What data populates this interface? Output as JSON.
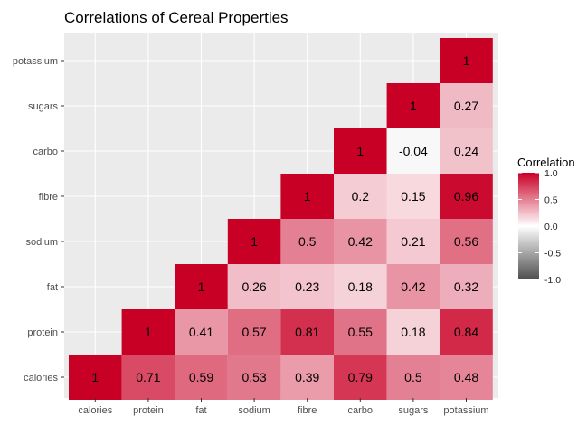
{
  "chart_data": {
    "type": "heatmap",
    "title": "Correlations of Cereal Properties",
    "xlabel": "",
    "ylabel": "",
    "variables": [
      "calories",
      "protein",
      "fat",
      "sodium",
      "fibre",
      "carbo",
      "sugars",
      "potassium"
    ],
    "cells": [
      {
        "x": "calories",
        "y": "calories",
        "value": 1,
        "label": "1"
      },
      {
        "x": "protein",
        "y": "calories",
        "value": 0.71,
        "label": "0.71"
      },
      {
        "x": "fat",
        "y": "calories",
        "value": 0.59,
        "label": "0.59"
      },
      {
        "x": "sodium",
        "y": "calories",
        "value": 0.53,
        "label": "0.53"
      },
      {
        "x": "fibre",
        "y": "calories",
        "value": 0.39,
        "label": "0.39"
      },
      {
        "x": "carbo",
        "y": "calories",
        "value": 0.79,
        "label": "0.79"
      },
      {
        "x": "sugars",
        "y": "calories",
        "value": 0.5,
        "label": "0.5"
      },
      {
        "x": "potassium",
        "y": "calories",
        "value": 0.48,
        "label": "0.48"
      },
      {
        "x": "protein",
        "y": "protein",
        "value": 1,
        "label": "1"
      },
      {
        "x": "fat",
        "y": "protein",
        "value": 0.41,
        "label": "0.41"
      },
      {
        "x": "sodium",
        "y": "protein",
        "value": 0.57,
        "label": "0.57"
      },
      {
        "x": "fibre",
        "y": "protein",
        "value": 0.81,
        "label": "0.81"
      },
      {
        "x": "carbo",
        "y": "protein",
        "value": 0.55,
        "label": "0.55"
      },
      {
        "x": "sugars",
        "y": "protein",
        "value": 0.18,
        "label": "0.18"
      },
      {
        "x": "potassium",
        "y": "protein",
        "value": 0.84,
        "label": "0.84"
      },
      {
        "x": "fat",
        "y": "fat",
        "value": 1,
        "label": "1"
      },
      {
        "x": "sodium",
        "y": "fat",
        "value": 0.26,
        "label": "0.26"
      },
      {
        "x": "fibre",
        "y": "fat",
        "value": 0.23,
        "label": "0.23"
      },
      {
        "x": "carbo",
        "y": "fat",
        "value": 0.18,
        "label": "0.18"
      },
      {
        "x": "sugars",
        "y": "fat",
        "value": 0.42,
        "label": "0.42"
      },
      {
        "x": "potassium",
        "y": "fat",
        "value": 0.32,
        "label": "0.32"
      },
      {
        "x": "sodium",
        "y": "sodium",
        "value": 1,
        "label": "1"
      },
      {
        "x": "fibre",
        "y": "sodium",
        "value": 0.5,
        "label": "0.5"
      },
      {
        "x": "carbo",
        "y": "sodium",
        "value": 0.42,
        "label": "0.42"
      },
      {
        "x": "sugars",
        "y": "sodium",
        "value": 0.21,
        "label": "0.21"
      },
      {
        "x": "potassium",
        "y": "sodium",
        "value": 0.56,
        "label": "0.56"
      },
      {
        "x": "fibre",
        "y": "fibre",
        "value": 1,
        "label": "1"
      },
      {
        "x": "carbo",
        "y": "fibre",
        "value": 0.2,
        "label": "0.2"
      },
      {
        "x": "sugars",
        "y": "fibre",
        "value": 0.15,
        "label": "0.15"
      },
      {
        "x": "potassium",
        "y": "fibre",
        "value": 0.96,
        "label": "0.96"
      },
      {
        "x": "carbo",
        "y": "carbo",
        "value": 1,
        "label": "1"
      },
      {
        "x": "sugars",
        "y": "carbo",
        "value": -0.04,
        "label": "-0.04"
      },
      {
        "x": "potassium",
        "y": "carbo",
        "value": 0.24,
        "label": "0.24"
      },
      {
        "x": "sugars",
        "y": "sugars",
        "value": 1,
        "label": "1"
      },
      {
        "x": "potassium",
        "y": "sugars",
        "value": 0.27,
        "label": "0.27"
      },
      {
        "x": "potassium",
        "y": "potassium",
        "value": 1,
        "label": "1"
      }
    ],
    "legend": {
      "title": "Correlation",
      "placement": "right",
      "range": [
        -1.0,
        1.0
      ],
      "ticks": [
        {
          "value": 1.0,
          "label": "1.0"
        },
        {
          "value": 0.5,
          "label": "0.5"
        },
        {
          "value": 0.0,
          "label": "0.0"
        },
        {
          "value": -0.5,
          "label": "-0.5"
        },
        {
          "value": -1.0,
          "label": "-1.0"
        }
      ]
    },
    "colors": {
      "high": "#c90026",
      "mid": "#ffffff",
      "low": "#4d4d4d",
      "panel_background": "#ebebeb",
      "grid": "#ffffff"
    },
    "grid": true
  }
}
